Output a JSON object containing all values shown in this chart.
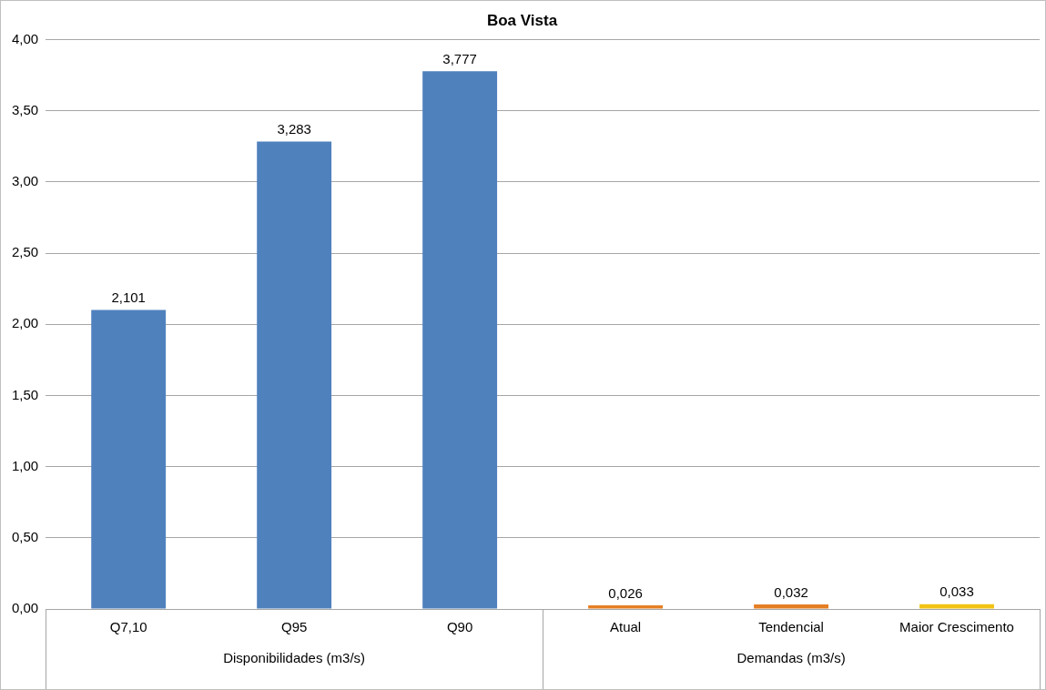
{
  "chart_data": {
    "type": "bar",
    "title": "Boa Vista",
    "categories": [
      "Q7,10",
      "Q95",
      "Q90",
      "Atual",
      "Tendencial",
      "Maior Crescimento"
    ],
    "values": [
      2.101,
      3.283,
      3.777,
      0.026,
      0.032,
      0.033
    ],
    "colors": [
      "#4f81bd",
      "#4f81bd",
      "#4f81bd",
      "#e57f23",
      "#e57f23",
      "#f2c314"
    ],
    "value_labels": [
      "2,101",
      "3,283",
      "3,777",
      "0,026",
      "0,032",
      "0,033"
    ],
    "ylim": [
      0,
      4
    ],
    "yticks": [
      {
        "value": 0,
        "label": "0,00"
      },
      {
        "value": 0.5,
        "label": "0,50"
      },
      {
        "value": 1,
        "label": "1,00"
      },
      {
        "value": 1.5,
        "label": "1,50"
      },
      {
        "value": 2,
        "label": "2,00"
      },
      {
        "value": 2.5,
        "label": "2,50"
      },
      {
        "value": 3,
        "label": "3,00"
      },
      {
        "value": 3.5,
        "label": "3,50"
      },
      {
        "value": 4,
        "label": "4,00"
      }
    ],
    "annotations": [
      "Disponibilidades (m3/s)",
      "Demandas (m3/s)"
    ],
    "grid": "y",
    "legend": false
  }
}
